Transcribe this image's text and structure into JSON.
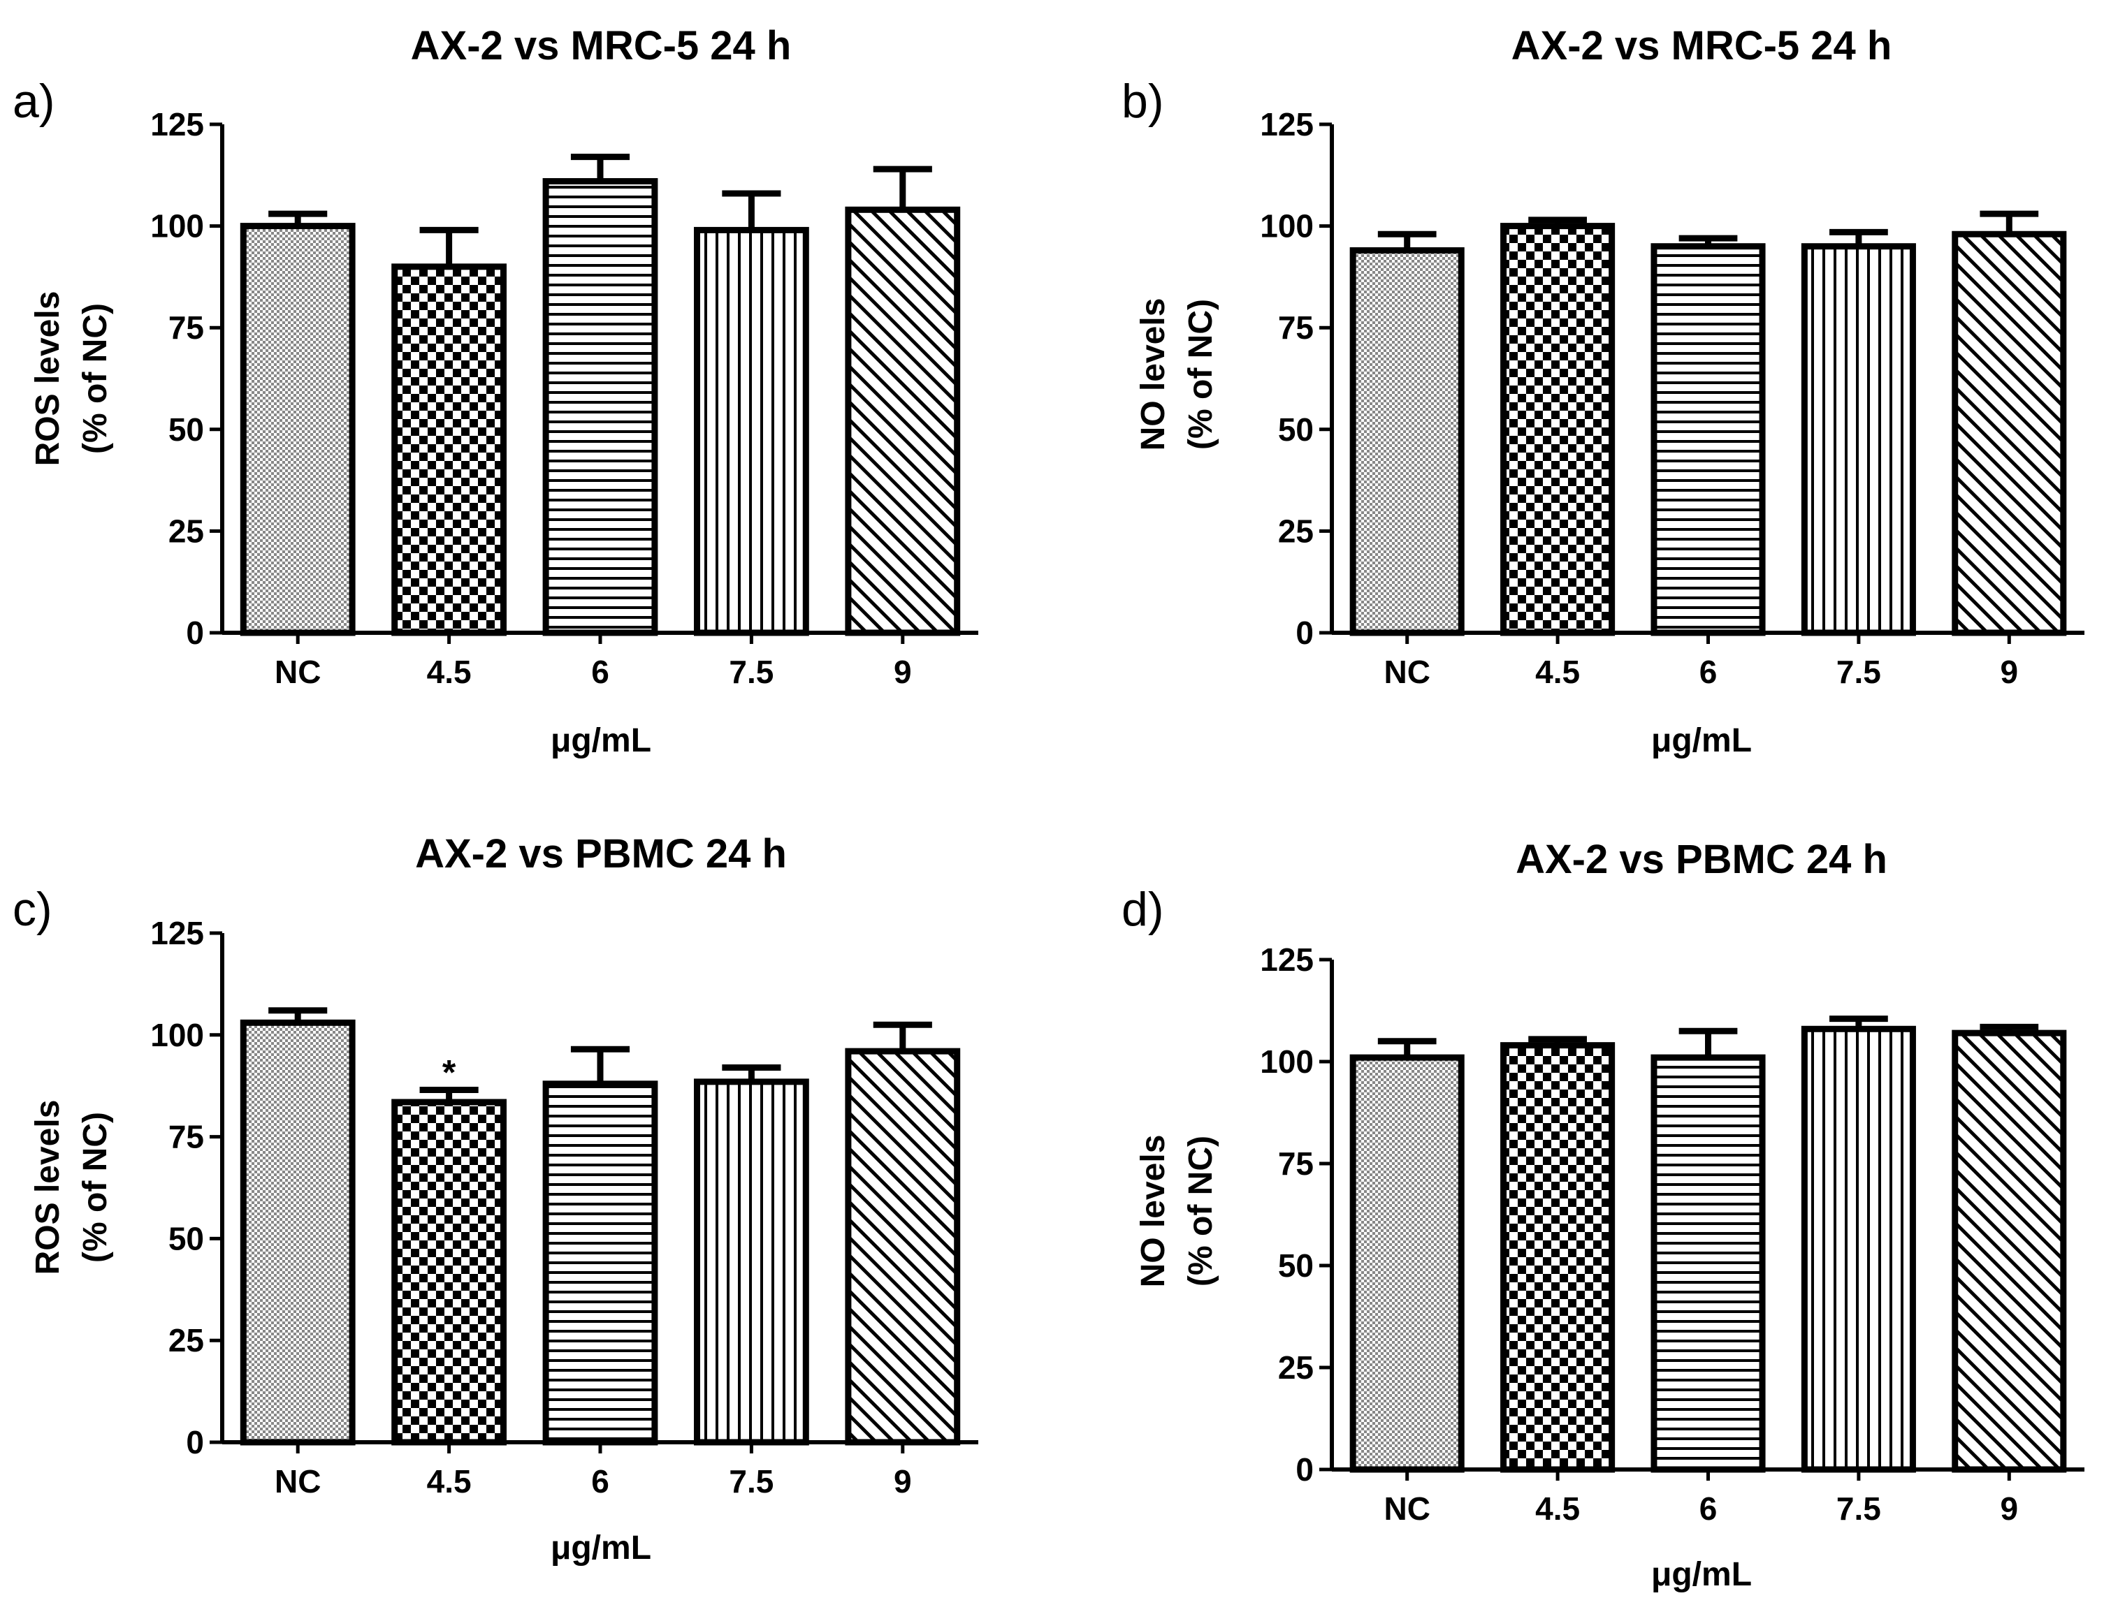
{
  "patterns": [
    "dots",
    "checker",
    "horizontal",
    "vertical",
    "diagonal"
  ],
  "colors": {
    "ink": "#000000",
    "background": "#ffffff",
    "dots_fill": "#888888"
  },
  "chart_data": [
    {
      "type": "bar",
      "panel": "a)",
      "title": "AX-2 vs MRC-5 24 h",
      "xlabel": "μg/mL",
      "ylabel": "ROS levels",
      "ylabel2": "(% of NC)",
      "categories": [
        "NC",
        "4.5",
        "6",
        "7.5",
        "9"
      ],
      "values": [
        100,
        90,
        111,
        99,
        104
      ],
      "errors": [
        3,
        9,
        6,
        9,
        10
      ],
      "ylim": [
        0,
        125
      ],
      "yticks": [
        0,
        25,
        50,
        75,
        100,
        125
      ],
      "annotations": [
        null,
        null,
        null,
        null,
        null
      ]
    },
    {
      "type": "bar",
      "panel": "b)",
      "title": "AX-2 vs MRC-5 24 h",
      "xlabel": "μg/mL",
      "ylabel": "NO levels",
      "ylabel2": "(% of NC)",
      "categories": [
        "NC",
        "4.5",
        "6",
        "7.5",
        "9"
      ],
      "values": [
        94,
        100,
        95,
        95,
        98
      ],
      "errors": [
        4,
        1.5,
        2,
        3.5,
        5
      ],
      "ylim": [
        0,
        125
      ],
      "yticks": [
        0,
        25,
        50,
        75,
        100,
        125
      ],
      "annotations": [
        null,
        null,
        null,
        null,
        null
      ]
    },
    {
      "type": "bar",
      "panel": "c)",
      "title": "AX-2 vs PBMC 24 h",
      "xlabel": "μg/mL",
      "ylabel": "ROS levels",
      "ylabel2": "(% of NC)",
      "categories": [
        "NC",
        "4.5",
        "6",
        "7.5",
        "9"
      ],
      "values": [
        103,
        83.5,
        88,
        88.5,
        96
      ],
      "errors": [
        3,
        3,
        8.5,
        3.5,
        6.5
      ],
      "ylim": [
        0,
        125
      ],
      "yticks": [
        0,
        25,
        50,
        75,
        100,
        125
      ],
      "annotations": [
        null,
        "*",
        null,
        null,
        null
      ]
    },
    {
      "type": "bar",
      "panel": "d)",
      "title": "AX-2 vs PBMC 24 h",
      "xlabel": "μg/mL",
      "ylabel": "NO levels",
      "ylabel2": "(% of NC)",
      "categories": [
        "NC",
        "4.5",
        "6",
        "7.5",
        "9"
      ],
      "values": [
        101,
        104,
        101,
        108,
        107
      ],
      "errors": [
        4,
        1.5,
        6.5,
        2.5,
        1.5
      ],
      "ylim": [
        0,
        125
      ],
      "yticks": [
        0,
        25,
        50,
        75,
        100,
        125
      ],
      "annotations": [
        null,
        null,
        null,
        null,
        null
      ]
    }
  ]
}
